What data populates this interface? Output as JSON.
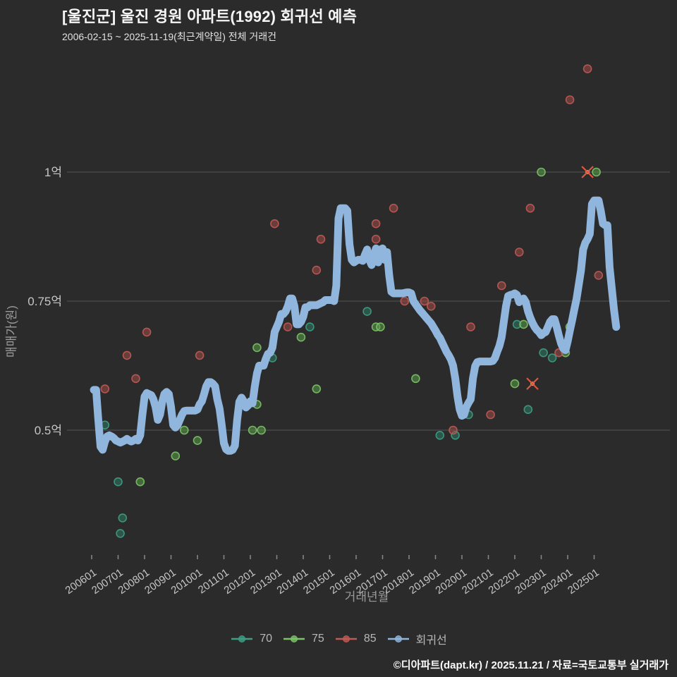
{
  "header": {
    "title": "[울진군] 울진 경원 아파트(1992) 회귀선 예측",
    "subtitle": "2006-02-15 ~ 2025-11-19(최근계약일) 전체 거래건"
  },
  "footer": {
    "credit": "©디아파트(dapt.kr) / 2025.11.21 / 자료=국토교통부 실거래가"
  },
  "colors": {
    "background": "#2b2b2b",
    "gridline": "#555555",
    "tick_label": "#c6c6c6",
    "axis_title": "#9a9a9a",
    "teal": "#3e9e83",
    "teal_fill": "#2f7a66",
    "green": "#7cc268",
    "green_fill": "#5a9e49",
    "red": "#c05a55",
    "red_fill": "#9e4a47",
    "line_blue": "#90b6dd",
    "cancel_x": "#e0573f",
    "cancel_center": "#d6c690"
  },
  "chart_data": {
    "type": "scatter",
    "title": "[울진군] 울진 경원 아파트(1992) 회귀선 예측",
    "xlabel": "거래년월",
    "ylabel": "매매가(원)",
    "x_ticks": [
      "200601",
      "200701",
      "200801",
      "200901",
      "201001",
      "201101",
      "201201",
      "201301",
      "201401",
      "201501",
      "201601",
      "201701",
      "201801",
      "201901",
      "202001",
      "202101",
      "202201",
      "202301",
      "202401",
      "202501"
    ],
    "y_ticks": [
      {
        "label": "0.5억",
        "value": 0.5
      },
      {
        "label": "0.75억",
        "value": 0.75
      },
      {
        "label": "1억",
        "value": 1.0
      }
    ],
    "ylim": [
      0.24,
      1.25
    ],
    "grid": "horizontal-only",
    "legend_position": "bottom-center",
    "series": [
      {
        "name": "70",
        "type": "scatter",
        "color_key": "teal",
        "points": [
          [
            "2006-07",
            0.51
          ],
          [
            "2007-01",
            0.4
          ],
          [
            "2007-02",
            0.3
          ],
          [
            "2007-03",
            0.33
          ],
          [
            "2012-11",
            0.64
          ],
          [
            "2014-04",
            0.7
          ],
          [
            "2016-06",
            0.73
          ],
          [
            "2019-03",
            0.49
          ],
          [
            "2019-10",
            0.49
          ],
          [
            "2020-04",
            0.53
          ],
          [
            "2022-02",
            0.705
          ],
          [
            "2022-07",
            0.54
          ],
          [
            "2023-02",
            0.65
          ],
          [
            "2023-06",
            0.64
          ]
        ]
      },
      {
        "name": "75",
        "type": "scatter",
        "color_key": "green",
        "points": [
          [
            "2007-11",
            0.4
          ],
          [
            "2009-03",
            0.45
          ],
          [
            "2009-07",
            0.5
          ],
          [
            "2010-01",
            0.48
          ],
          [
            "2012-02",
            0.5
          ],
          [
            "2012-04",
            0.55
          ],
          [
            "2012-04",
            0.66
          ],
          [
            "2012-06",
            0.5
          ],
          [
            "2013-12",
            0.68
          ],
          [
            "2014-07",
            0.58
          ],
          [
            "2016-10",
            0.7
          ],
          [
            "2016-12",
            0.7
          ],
          [
            "2018-04",
            0.6
          ],
          [
            "2022-01",
            0.59
          ],
          [
            "2022-05",
            0.705
          ],
          [
            "2023-01",
            1.0
          ],
          [
            "2023-12",
            0.65
          ],
          [
            "2024-02",
            0.7
          ],
          [
            "2025-02",
            1.0
          ]
        ]
      },
      {
        "name": "85",
        "type": "scatter",
        "color_key": "red",
        "points": [
          [
            "2006-07",
            0.58
          ],
          [
            "2007-05",
            0.645
          ],
          [
            "2007-09",
            0.6
          ],
          [
            "2008-02",
            0.69
          ],
          [
            "2010-02",
            0.645
          ],
          [
            "2012-12",
            0.9
          ],
          [
            "2013-06",
            0.7
          ],
          [
            "2014-07",
            0.81
          ],
          [
            "2014-09",
            0.87
          ],
          [
            "2016-10",
            0.9
          ],
          [
            "2016-10",
            0.87
          ],
          [
            "2017-06",
            0.93
          ],
          [
            "2017-11",
            0.75
          ],
          [
            "2018-08",
            0.75
          ],
          [
            "2018-11",
            0.74
          ],
          [
            "2019-09",
            0.5
          ],
          [
            "2020-05",
            0.7
          ],
          [
            "2021-02",
            0.53
          ],
          [
            "2021-07",
            0.78
          ],
          [
            "2022-03",
            0.845
          ],
          [
            "2022-08",
            0.93
          ],
          [
            "2023-09",
            0.65
          ],
          [
            "2024-02",
            1.14
          ],
          [
            "2024-10",
            1.2
          ],
          [
            "2025-03",
            0.8
          ]
        ]
      },
      {
        "name": "회귀선",
        "type": "line",
        "color_key": "line_blue",
        "monthly_start": "2006-02",
        "values": [
          0.578,
          0.578,
          0.52,
          0.468,
          0.462,
          0.478,
          0.488,
          0.49,
          0.488,
          0.485,
          0.48,
          0.478,
          0.476,
          0.478,
          0.48,
          0.483,
          0.48,
          0.478,
          0.48,
          0.483,
          0.48,
          0.49,
          0.53,
          0.565,
          0.572,
          0.57,
          0.568,
          0.56,
          0.545,
          0.52,
          0.53,
          0.555,
          0.57,
          0.574,
          0.57,
          0.545,
          0.51,
          0.505,
          0.51,
          0.52,
          0.53,
          0.537,
          0.538,
          0.538,
          0.538,
          0.538,
          0.538,
          0.54,
          0.55,
          0.556,
          0.57,
          0.585,
          0.593,
          0.593,
          0.59,
          0.585,
          0.56,
          0.542,
          0.51,
          0.475,
          0.463,
          0.46,
          0.46,
          0.462,
          0.47,
          0.52,
          0.555,
          0.563,
          0.556,
          0.544,
          0.548,
          0.556,
          0.552,
          0.585,
          0.61,
          0.625,
          0.625,
          0.625,
          0.638,
          0.648,
          0.65,
          0.66,
          0.69,
          0.7,
          0.71,
          0.725,
          0.725,
          0.73,
          0.74,
          0.755,
          0.755,
          0.74,
          0.705,
          0.705,
          0.71,
          0.72,
          0.738,
          0.738,
          0.742,
          0.742,
          0.742,
          0.742,
          0.744,
          0.746,
          0.748,
          0.752,
          0.752,
          0.752,
          0.752,
          0.75,
          0.78,
          0.91,
          0.93,
          0.93,
          0.93,
          0.925,
          0.86,
          0.83,
          0.825,
          0.828,
          0.83,
          0.83,
          0.828,
          0.84,
          0.85,
          0.83,
          0.82,
          0.838,
          0.852,
          0.825,
          0.85,
          0.852,
          0.83,
          0.845,
          0.8,
          0.768,
          0.765,
          0.765,
          0.765,
          0.765,
          0.765,
          0.766,
          0.767,
          0.767,
          0.765,
          0.75,
          0.744,
          0.738,
          0.732,
          0.727,
          0.722,
          0.717,
          0.712,
          0.707,
          0.7,
          0.693,
          0.685,
          0.679,
          0.67,
          0.661,
          0.652,
          0.645,
          0.637,
          0.625,
          0.6,
          0.565,
          0.54,
          0.528,
          0.53,
          0.545,
          0.553,
          0.56,
          0.6,
          0.624,
          0.632,
          0.633,
          0.633,
          0.633,
          0.633,
          0.633,
          0.633,
          0.634,
          0.64,
          0.652,
          0.663,
          0.68,
          0.71,
          0.74,
          0.76,
          0.762,
          0.763,
          0.765,
          0.762,
          0.748,
          0.753,
          0.755,
          0.748,
          0.73,
          0.718,
          0.708,
          0.7,
          0.694,
          0.69,
          0.684,
          0.688,
          0.69,
          0.7,
          0.71,
          0.715,
          0.715,
          0.7,
          0.683,
          0.668,
          0.658,
          0.655,
          0.672,
          0.693,
          0.713,
          0.734,
          0.754,
          0.781,
          0.809,
          0.85,
          0.863,
          0.87,
          0.88,
          0.938,
          0.945,
          0.945,
          0.945,
          0.925,
          0.9,
          0.897,
          0.897,
          0.816,
          0.775,
          0.734,
          0.7
        ]
      }
    ],
    "cancelled_markers": [
      [
        "2022-09",
        0.59
      ],
      [
        "2024-10",
        1.0
      ]
    ]
  },
  "legend": {
    "items": [
      {
        "label": "70",
        "color_key": "teal"
      },
      {
        "label": "75",
        "color_key": "green"
      },
      {
        "label": "85",
        "color_key": "red"
      },
      {
        "label": "회귀선",
        "color_key": "line_blue"
      }
    ]
  }
}
